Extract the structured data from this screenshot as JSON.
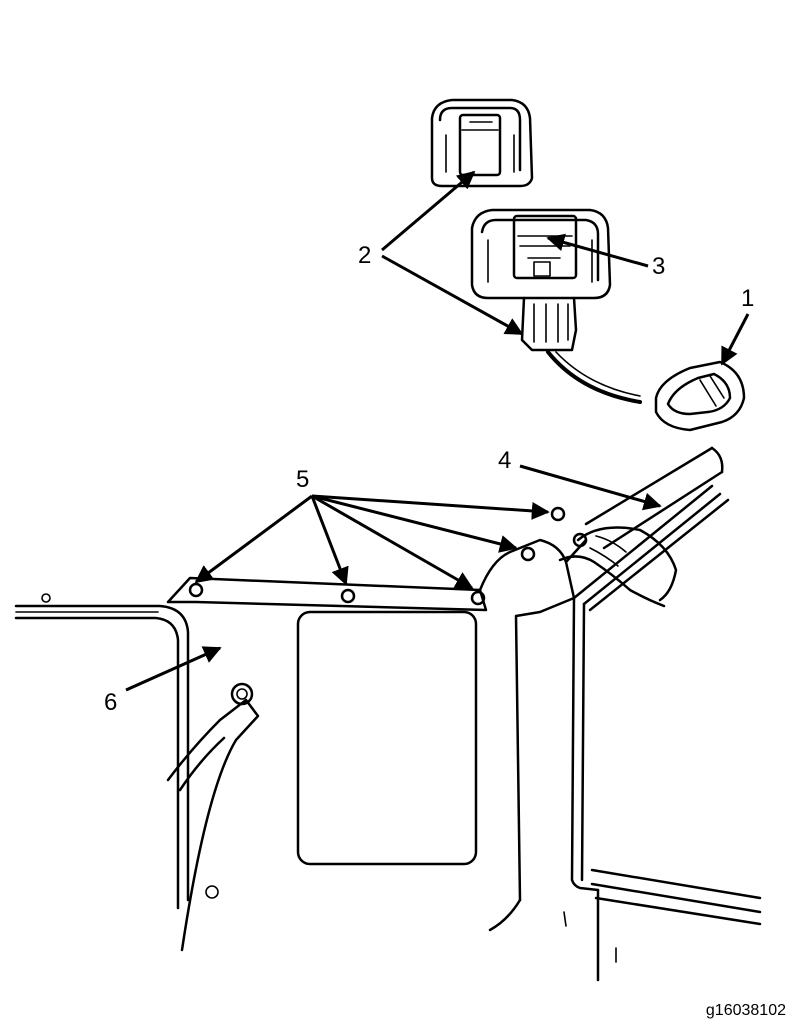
{
  "callouts": [
    {
      "id": "1",
      "text": "1"
    },
    {
      "id": "2",
      "text": "2"
    },
    {
      "id": "3",
      "text": "3"
    },
    {
      "id": "4",
      "text": "4"
    },
    {
      "id": "5",
      "text": "5"
    },
    {
      "id": "6",
      "text": "6"
    }
  ],
  "figure_id": "g16038102"
}
